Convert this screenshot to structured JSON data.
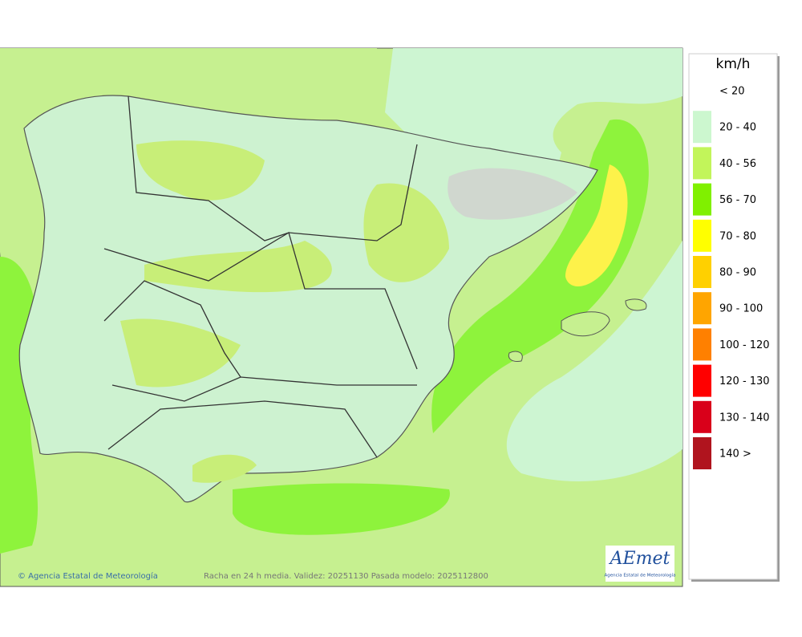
{
  "legend": {
    "title": "km/h",
    "items": [
      {
        "label": "< 20"
      },
      {
        "label": "20 - 40",
        "color": "#ccf7cf"
      },
      {
        "label": "40 - 56",
        "color": "#c2f55a"
      },
      {
        "label": "56 - 70",
        "color": "#80f000"
      },
      {
        "label": "70 - 80",
        "color": "#ffff00"
      },
      {
        "label": "80 - 90",
        "color": "#ffd000"
      },
      {
        "label": "90 - 100",
        "color": "#ffa500"
      },
      {
        "label": "100 - 120",
        "color": "#ff8000"
      },
      {
        "label": "120 - 130",
        "color": "#ff0000"
      },
      {
        "label": "130 - 140",
        "color": "#d9001a"
      },
      {
        "label": "140 >",
        "color": "#b0141e"
      }
    ]
  },
  "footer": {
    "credit": "© Agencia Estatal de Meteorología",
    "caption": "Racha en 24 h media. Validez: 20251130 Pasada modelo: 2025112800"
  },
  "logo": {
    "name": "AEmet",
    "subtitle": "Agencia Estatal de Meteorología"
  }
}
